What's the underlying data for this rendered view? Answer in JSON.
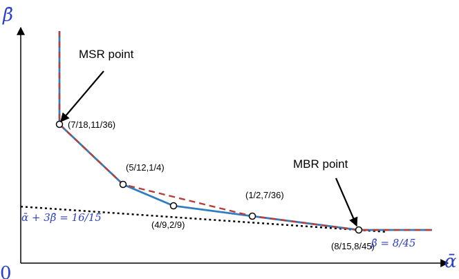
{
  "chart_data": {
    "type": "line",
    "axes": {
      "x_label": "ᾱ",
      "y_label": "β̄",
      "origin_label": "0"
    },
    "series": [
      {
        "points": [
          {
            "x": 0.3889,
            "y": 0.4,
            "label": ""
          },
          {
            "x": 0.3889,
            "y": 0.3056,
            "label": "(7/18,11/36)"
          },
          {
            "x": 0.4167,
            "y": 0.25,
            "label": "(5/12,1/4)"
          },
          {
            "x": 0.4444,
            "y": 0.2222,
            "label": "(4/9,2/9)"
          },
          {
            "x": 0.5,
            "y": 0.1944,
            "label": "(1/2,7/36)"
          },
          {
            "x": 0.5333,
            "y": 0.1778,
            "label": "(8/15,8/45)"
          },
          {
            "x": 0.565,
            "y": 0.1778,
            "label": ""
          }
        ],
        "color": "#2f7dc1",
        "style": "solid"
      },
      {
        "points": [
          {
            "x": 0.3889,
            "y": 0.4
          },
          {
            "x": 0.3889,
            "y": 0.3056
          },
          {
            "x": 0.4167,
            "y": 0.25
          },
          {
            "x": 0.5,
            "y": 0.1944
          },
          {
            "x": 0.5333,
            "y": 0.1778
          },
          {
            "x": 0.565,
            "y": 0.1778
          }
        ],
        "color": "#b5403a",
        "style": "dashed"
      },
      {
        "equation": "ᾱ + 3β̄ = 16/15",
        "points": [
          {
            "x": 0.3889,
            "y": 0.2259
          },
          {
            "x": 0.5333,
            "y": 0.1778
          }
        ],
        "color": "#000000",
        "style": "dotted"
      }
    ],
    "annotations": {
      "msr": "MSR point",
      "mbr": "MBR point",
      "line_eq": "ᾱ + 3β̄ = 16/15",
      "horizontal_eq": "β̄ = 8/45"
    },
    "colors": {
      "blue": "#2f7dc1",
      "red": "#b5403a",
      "math_text": "#2b3ec8"
    },
    "grid": false
  }
}
